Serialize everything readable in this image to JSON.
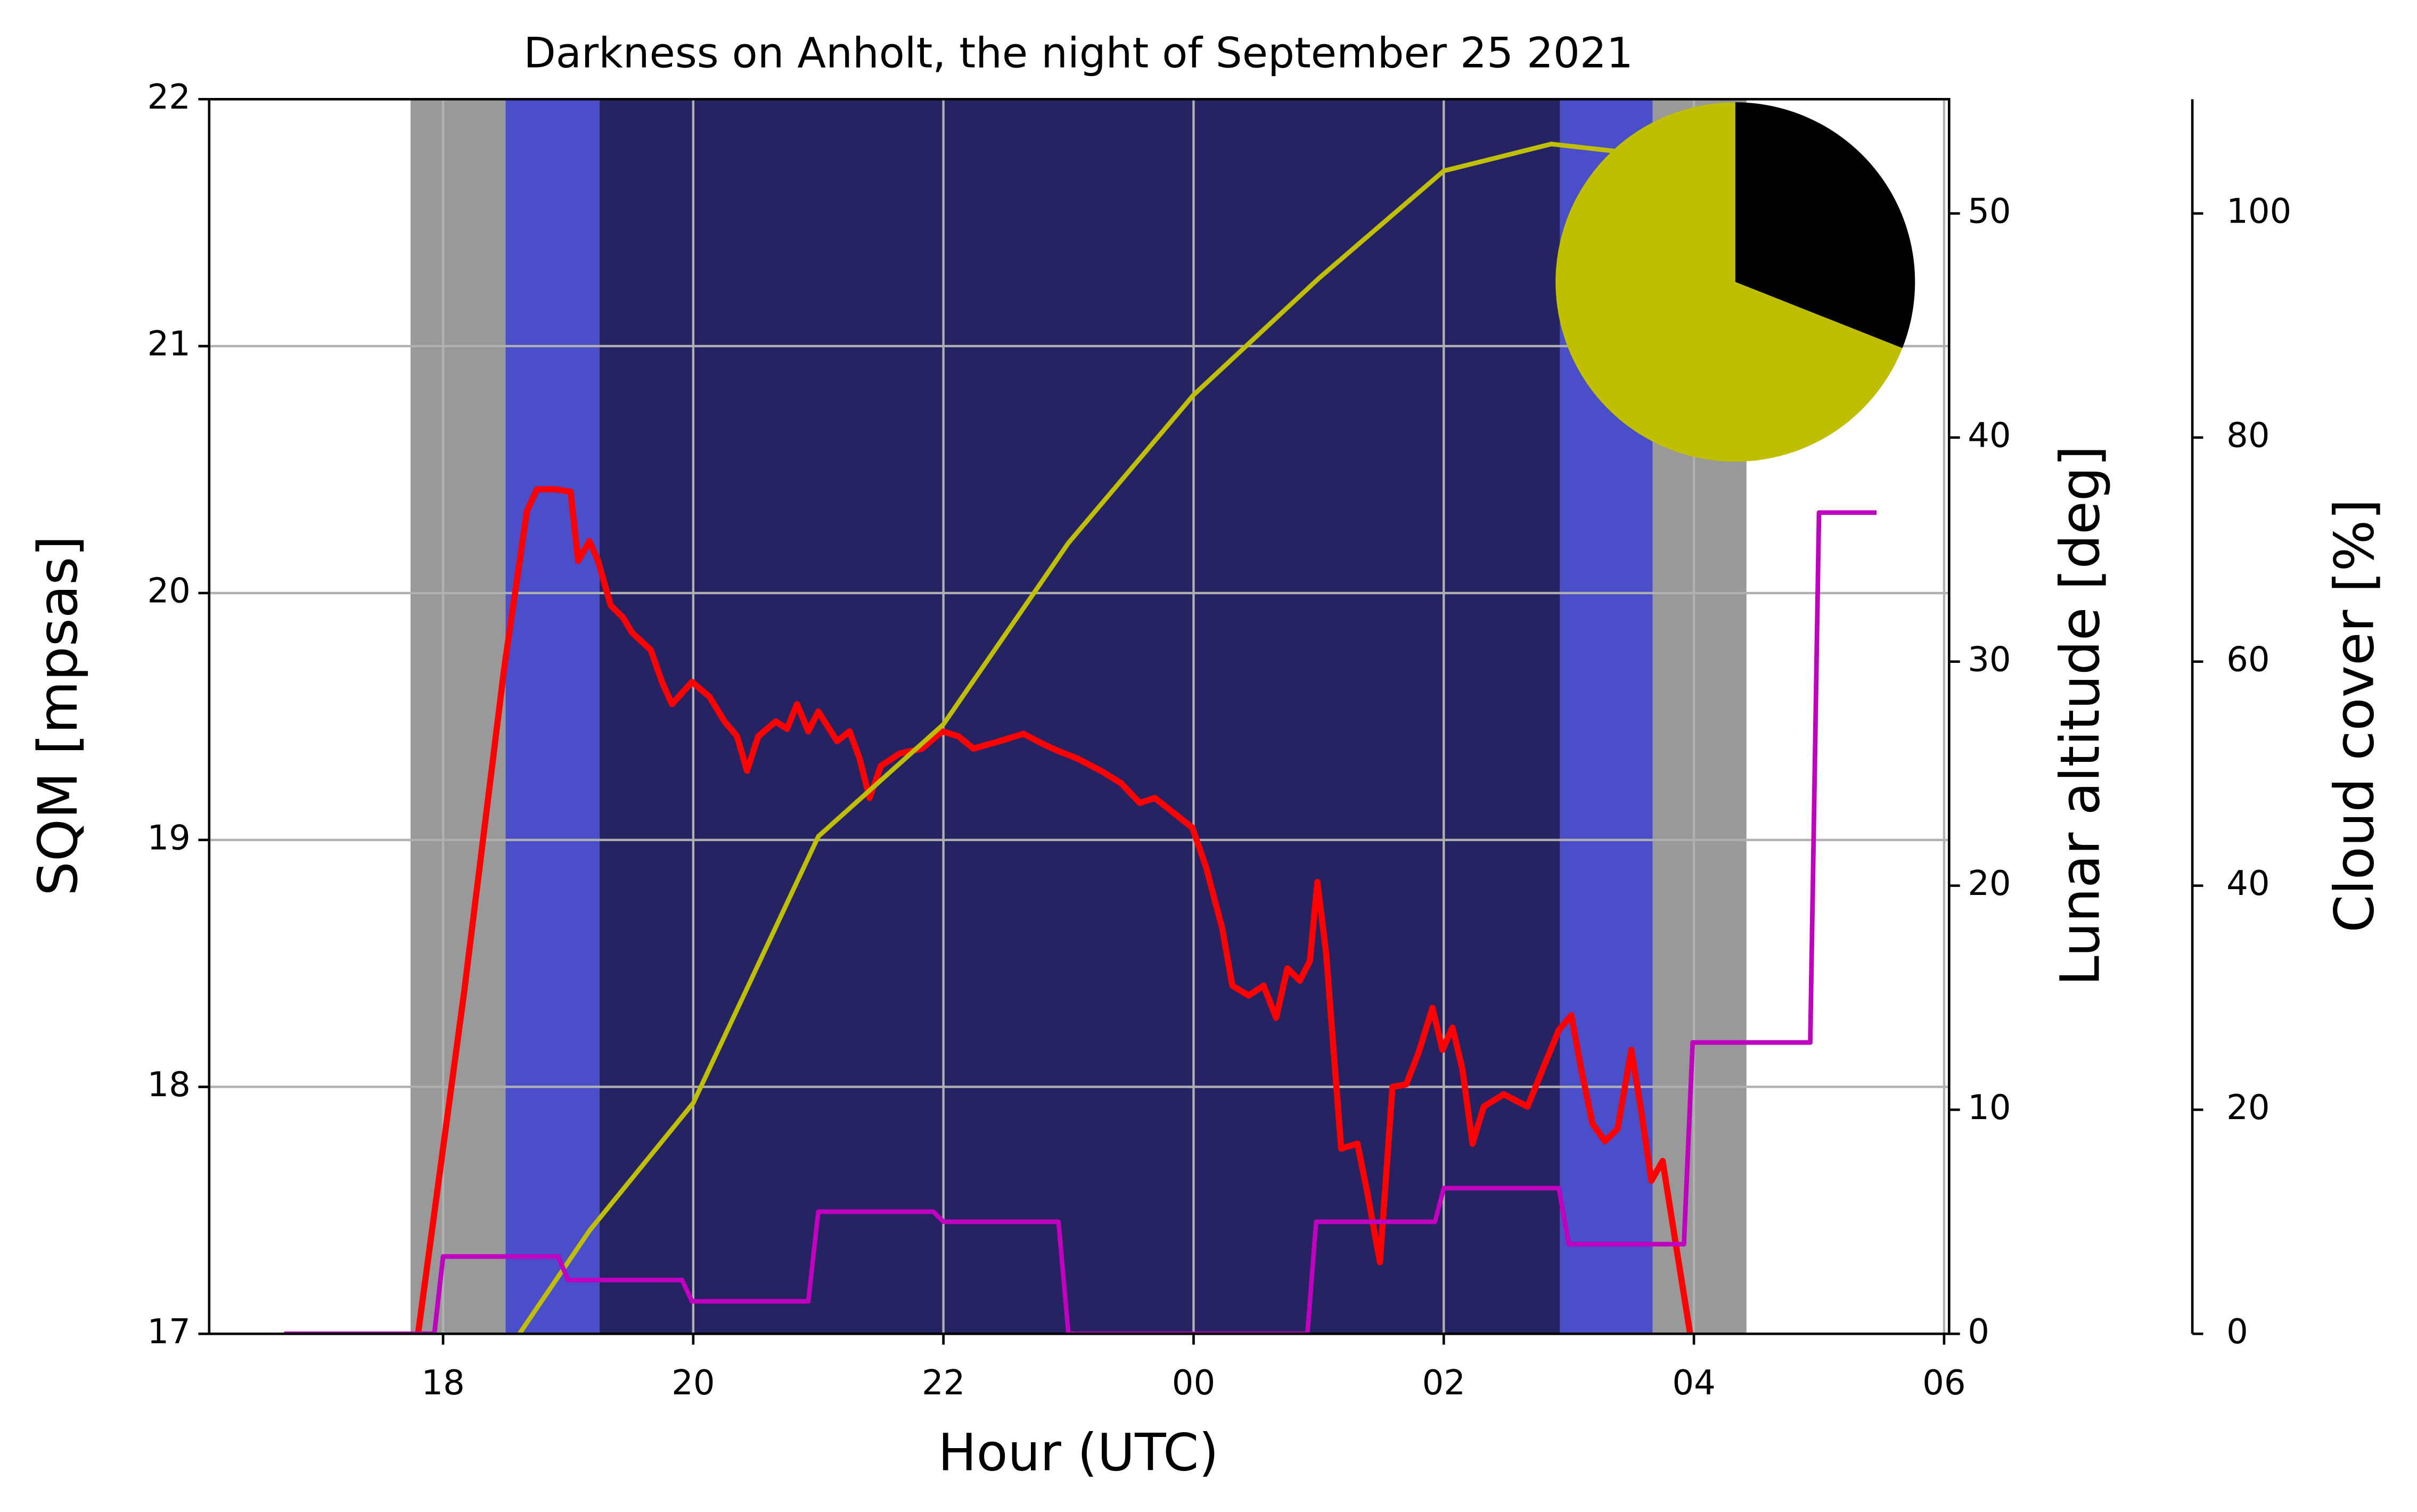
{
  "chart_data": {
    "type": "line",
    "title": "Darkness on Anholt, the night of September 25 2021",
    "xlabel": "Hour (UTC)",
    "ylabel": "SQM [mpsas]",
    "ylabel_color": "#ff0000",
    "y2label": "Lunar altitude [deg]",
    "y2label_color": "#bfbf00",
    "y3label": "Cloud cover [%]",
    "y3label_color": "#bf00bf",
    "xlim": [
      16.13,
      30.04
    ],
    "xticks": [
      {
        "value": 18,
        "label": "18"
      },
      {
        "value": 20,
        "label": "20"
      },
      {
        "value": 22,
        "label": "22"
      },
      {
        "value": 24,
        "label": "00"
      },
      {
        "value": 26,
        "label": "02"
      },
      {
        "value": 28,
        "label": "04"
      },
      {
        "value": 30,
        "label": "06"
      }
    ],
    "ylim": [
      17,
      22
    ],
    "yticks": [
      17,
      18,
      19,
      20,
      21,
      22
    ],
    "y2lim": [
      0,
      55.1
    ],
    "y2ticks": [
      0,
      10,
      20,
      30,
      40,
      50
    ],
    "y3lim": [
      0,
      110.2
    ],
    "y3ticks": [
      0,
      20,
      40,
      60,
      80,
      100
    ],
    "grid": true,
    "bands": [
      {
        "from": 17.74,
        "to": 18.5,
        "color": "#999999"
      },
      {
        "from": 18.5,
        "to": 19.25,
        "color": "#4b4ec9"
      },
      {
        "from": 19.25,
        "to": 26.93,
        "color": "#252361"
      },
      {
        "from": 26.93,
        "to": 27.67,
        "color": "#4b4ec9"
      },
      {
        "from": 27.67,
        "to": 28.42,
        "color": "#999999"
      }
    ],
    "series": [
      {
        "axis": "y",
        "color": "#ff0000",
        "x": [
          17.8,
          18.17,
          18.49,
          18.59,
          18.67,
          18.75,
          18.9,
          19.02,
          19.08,
          19.17,
          19.24,
          19.34,
          19.44,
          19.51,
          19.66,
          19.75,
          19.83,
          19.99,
          20.13,
          20.25,
          20.35,
          20.43,
          20.52,
          20.66,
          20.75,
          20.83,
          20.92,
          21.0,
          21.15,
          21.25,
          21.33,
          21.41,
          21.5,
          21.65,
          21.83,
          21.99,
          22.12,
          22.24,
          22.45,
          22.64,
          22.79,
          22.92,
          23.07,
          23.26,
          23.42,
          23.57,
          23.69,
          23.84,
          23.99,
          24.1,
          24.23,
          24.31,
          24.44,
          24.56,
          24.66,
          24.75,
          24.85,
          24.93,
          24.99,
          25.06,
          25.18,
          25.31,
          25.39,
          25.49,
          25.59,
          25.7,
          25.8,
          25.91,
          25.99,
          26.07,
          26.15,
          26.23,
          26.32,
          26.48,
          26.67,
          26.79,
          26.92,
          27.02,
          27.1,
          27.19,
          27.29,
          27.39,
          27.5,
          27.58,
          27.66,
          27.75,
          27.85,
          27.97
        ],
        "values": [
          17.0,
          18.39,
          19.7,
          20.05,
          20.33,
          20.42,
          20.42,
          20.41,
          20.13,
          20.21,
          20.13,
          19.95,
          19.9,
          19.84,
          19.77,
          19.64,
          19.55,
          19.64,
          19.58,
          19.48,
          19.42,
          19.28,
          19.42,
          19.48,
          19.45,
          19.55,
          19.44,
          19.52,
          19.4,
          19.44,
          19.33,
          19.17,
          19.3,
          19.35,
          19.37,
          19.44,
          19.42,
          19.37,
          19.4,
          19.43,
          19.39,
          19.36,
          19.33,
          19.28,
          19.23,
          19.15,
          19.17,
          19.11,
          19.05,
          18.89,
          18.64,
          18.41,
          18.37,
          18.41,
          18.28,
          18.48,
          18.43,
          18.51,
          18.83,
          18.54,
          17.75,
          17.77,
          17.57,
          17.29,
          18.0,
          18.01,
          18.14,
          18.32,
          18.15,
          18.24,
          18.07,
          17.77,
          17.92,
          17.97,
          17.92,
          18.07,
          18.23,
          18.29,
          18.07,
          17.85,
          17.78,
          17.83,
          18.15,
          17.9,
          17.62,
          17.7,
          17.38,
          17.0
        ]
      },
      {
        "axis": "y2",
        "color": "#bfbf00",
        "x": [
          18.61,
          19.17,
          20.0,
          21.0,
          22.0,
          23.0,
          24.0,
          25.0,
          26.0,
          26.86,
          27.66
        ],
        "values": [
          0,
          4.6,
          10.3,
          22.2,
          27.2,
          35.3,
          41.9,
          47.1,
          51.9,
          53.1,
          52.6
        ]
      },
      {
        "axis": "y3",
        "color": "#bf00bf",
        "x": [
          16.73,
          17.93,
          18.0,
          18.92,
          19.0,
          19.91,
          19.99,
          20.92,
          21.0,
          21.92,
          22.0,
          22.92,
          23.0,
          24.91,
          24.98,
          25.93,
          26.0,
          26.92,
          27.0,
          27.92,
          27.99,
          28.93,
          29.0,
          29.46
        ],
        "values": [
          0,
          0,
          6.9,
          6.9,
          4.8,
          4.8,
          2.9,
          2.9,
          10.9,
          10.9,
          10.0,
          10.0,
          0,
          0,
          10.0,
          10.0,
          13.0,
          13.0,
          8.0,
          8.0,
          26.0,
          26.0,
          73.3,
          73.3
        ]
      }
    ],
    "moon_pie": {
      "values": [
        31,
        69
      ],
      "colors": [
        "#000000",
        "#bfbf00"
      ]
    }
  }
}
